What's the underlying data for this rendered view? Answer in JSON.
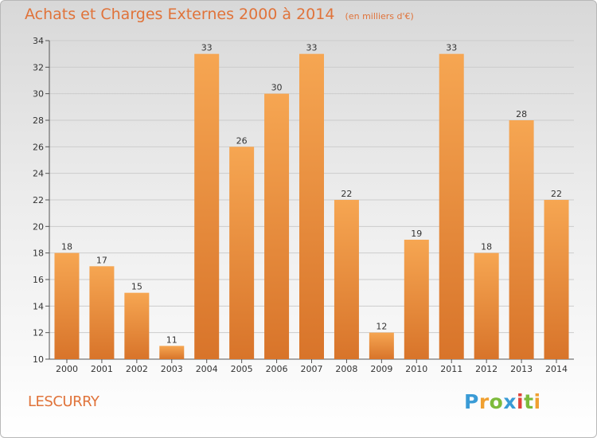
{
  "header": {
    "title": "Achats et Charges Externes 2000 à 2014",
    "subtitle": "(en milliers d'€)"
  },
  "footer": {
    "commune": "LESCURRY",
    "brand": "Proxiti",
    "brand_letters": [
      {
        "char": "P",
        "color": "#3a9bd6"
      },
      {
        "char": "r",
        "color": "#f0a030"
      },
      {
        "char": "o",
        "color": "#7dbb3c"
      },
      {
        "char": "x",
        "color": "#3a9bd6"
      },
      {
        "char": "i",
        "color": "#e0433a"
      },
      {
        "char": "t",
        "color": "#7dbb3c"
      },
      {
        "char": "i",
        "color": "#f0a030"
      }
    ]
  },
  "colors": {
    "accent": "#e0733a",
    "bar_light": "#f6a652",
    "bar_dark": "#d8742a",
    "grid": "#cccccc"
  },
  "chart_data": {
    "type": "bar",
    "categories": [
      "2000",
      "2001",
      "2002",
      "2003",
      "2004",
      "2005",
      "2006",
      "2007",
      "2008",
      "2009",
      "2010",
      "2011",
      "2012",
      "2013",
      "2014"
    ],
    "values": [
      18,
      17,
      15,
      11,
      33,
      26,
      30,
      33,
      22,
      12,
      19,
      33,
      18,
      28,
      22
    ],
    "title": "Achats et Charges Externes 2000 à 2014",
    "subtitle": "(en milliers d'€)",
    "xlabel": "",
    "ylabel": "",
    "ylim": [
      10,
      34
    ],
    "yticks": [
      10,
      12,
      14,
      16,
      18,
      20,
      22,
      24,
      26,
      28,
      30,
      32,
      34
    ],
    "grid": true,
    "legend": "none"
  }
}
